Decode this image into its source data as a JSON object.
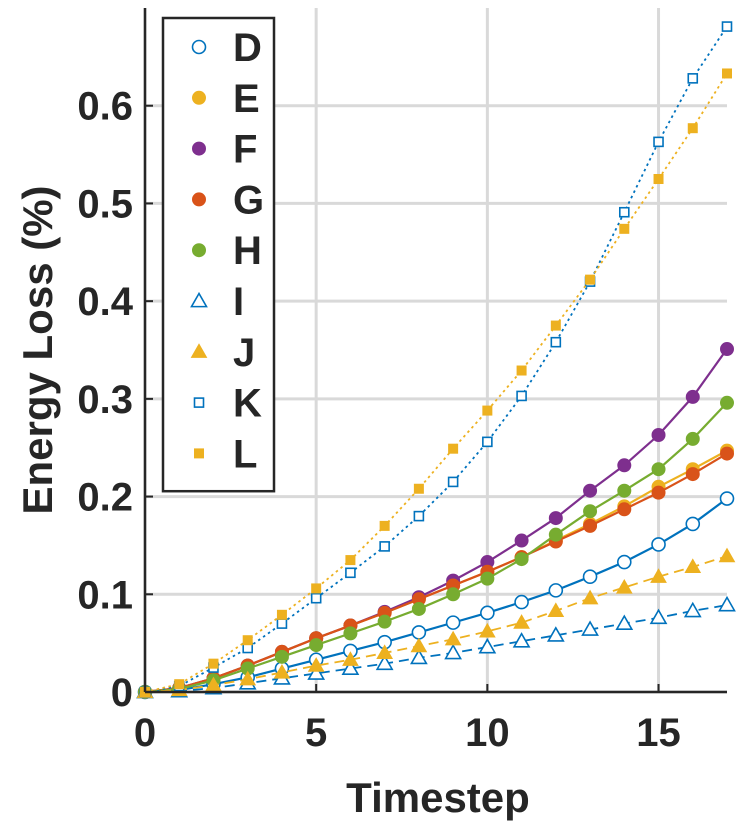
{
  "chart_data": {
    "type": "line",
    "title": "",
    "xlabel": "Timestep",
    "ylabel": "Energy Loss (%)",
    "xlim": [
      0,
      17
    ],
    "ylim": [
      0,
      0.7
    ],
    "xticks": [
      "0",
      "5",
      "10",
      "15"
    ],
    "yticks": [
      "0",
      "0.1",
      "0.2",
      "0.3",
      "0.4",
      "0.5",
      "0.6"
    ],
    "grid": true,
    "legend_position": "top-left",
    "x": [
      0,
      1,
      2,
      3,
      4,
      5,
      6,
      7,
      8,
      9,
      10,
      11,
      12,
      13,
      14,
      15,
      16,
      17
    ],
    "series": [
      {
        "name": "D",
        "color": "#0072BD",
        "marker": "circle-open",
        "line": "solid",
        "values": [
          0,
          0.002,
          0.008,
          0.015,
          0.024,
          0.033,
          0.042,
          0.051,
          0.061,
          0.071,
          0.081,
          0.092,
          0.104,
          0.118,
          0.133,
          0.151,
          0.172,
          0.198
        ]
      },
      {
        "name": "E",
        "color": "#EDB120",
        "marker": "circle-filled",
        "line": "solid",
        "values": [
          0,
          0.004,
          0.014,
          0.027,
          0.041,
          0.055,
          0.068,
          0.081,
          0.095,
          0.109,
          0.123,
          0.138,
          0.155,
          0.172,
          0.19,
          0.21,
          0.228,
          0.247
        ]
      },
      {
        "name": "F",
        "color": "#7E2F8E",
        "marker": "circle-filled",
        "line": "solid",
        "values": [
          0,
          0.004,
          0.014,
          0.027,
          0.041,
          0.055,
          0.068,
          0.082,
          0.097,
          0.114,
          0.133,
          0.155,
          0.178,
          0.206,
          0.232,
          0.263,
          0.302,
          0.351
        ]
      },
      {
        "name": "G",
        "color": "#D95319",
        "marker": "circle-filled",
        "line": "solid",
        "values": [
          0,
          0.004,
          0.014,
          0.027,
          0.041,
          0.055,
          0.068,
          0.081,
          0.095,
          0.109,
          0.123,
          0.138,
          0.154,
          0.17,
          0.187,
          0.204,
          0.223,
          0.244
        ]
      },
      {
        "name": "H",
        "color": "#77AC30",
        "marker": "circle-filled",
        "line": "solid",
        "values": [
          0,
          0.003,
          0.012,
          0.024,
          0.036,
          0.048,
          0.06,
          0.072,
          0.085,
          0.1,
          0.116,
          0.136,
          0.161,
          0.185,
          0.206,
          0.228,
          0.259,
          0.296
        ]
      },
      {
        "name": "I",
        "color": "#0072BD",
        "marker": "triangle-open",
        "line": "dashed",
        "values": [
          0,
          0.001,
          0.004,
          0.009,
          0.014,
          0.019,
          0.024,
          0.029,
          0.035,
          0.04,
          0.046,
          0.052,
          0.058,
          0.064,
          0.07,
          0.076,
          0.083,
          0.089
        ]
      },
      {
        "name": "J",
        "color": "#EDB120",
        "marker": "triangle-filled",
        "line": "dashed",
        "values": [
          0,
          0.002,
          0.007,
          0.013,
          0.02,
          0.027,
          0.033,
          0.04,
          0.047,
          0.054,
          0.062,
          0.071,
          0.083,
          0.096,
          0.107,
          0.118,
          0.128,
          0.139
        ]
      },
      {
        "name": "K",
        "color": "#0072BD",
        "marker": "square-open",
        "line": "dotted",
        "values": [
          0,
          0.006,
          0.025,
          0.045,
          0.07,
          0.096,
          0.122,
          0.149,
          0.18,
          0.215,
          0.256,
          0.303,
          0.358,
          0.42,
          0.491,
          0.563,
          0.628,
          0.681
        ]
      },
      {
        "name": "L",
        "color": "#EDB120",
        "marker": "square-filled",
        "line": "dotted",
        "values": [
          0,
          0.008,
          0.029,
          0.053,
          0.079,
          0.106,
          0.135,
          0.17,
          0.208,
          0.249,
          0.288,
          0.329,
          0.375,
          0.422,
          0.474,
          0.525,
          0.577,
          0.633
        ]
      }
    ]
  }
}
